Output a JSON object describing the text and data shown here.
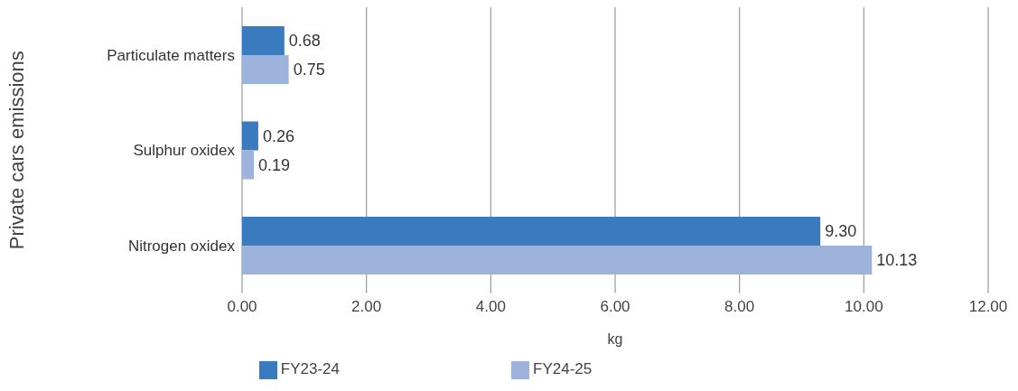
{
  "chart_data": {
    "type": "bar",
    "orientation": "horizontal",
    "ylabel": "Private cars emissions",
    "xlabel": "kg",
    "categories": [
      "Particulate matters",
      "Sulphur oxidex",
      "Nitrogen oxidex"
    ],
    "series": [
      {
        "name": "FY23-24",
        "color": "#3a7bbf",
        "values": [
          0.68,
          0.26,
          9.3
        ],
        "value_labels": [
          "0.68",
          "0.26",
          "9.30"
        ]
      },
      {
        "name": "FY24-25",
        "color": "#9db3dc",
        "values": [
          0.75,
          0.19,
          10.13
        ],
        "value_labels": [
          "0.75",
          "0.19",
          "10.13"
        ]
      }
    ],
    "xlim": [
      0,
      12
    ],
    "xticks": [
      {
        "value": 0,
        "label": "0.00"
      },
      {
        "value": 2,
        "label": "2.00"
      },
      {
        "value": 4,
        "label": "4.00"
      },
      {
        "value": 6,
        "label": "6.00"
      },
      {
        "value": 8,
        "label": "8.00"
      },
      {
        "value": 10,
        "label": "10.00"
      },
      {
        "value": 12,
        "label": "12.00"
      }
    ],
    "grid": "x",
    "legend": "bottom"
  }
}
